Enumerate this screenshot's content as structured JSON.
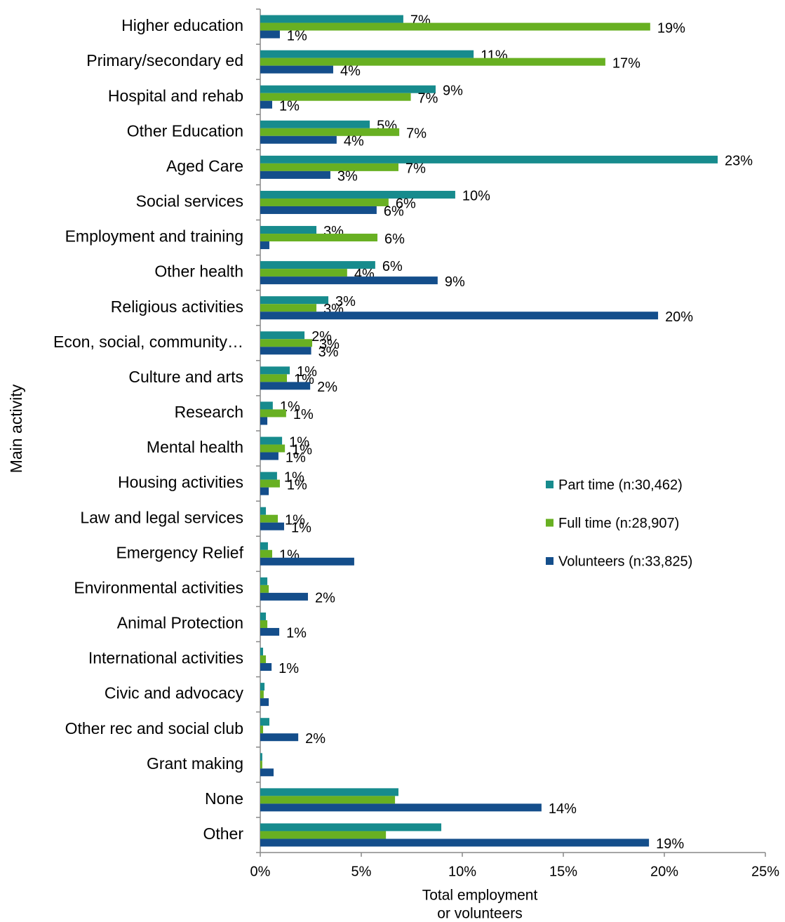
{
  "chart_data": {
    "type": "hbar",
    "ylabel": "Main activity",
    "xlabel": [
      "Total employment",
      "or volunteers"
    ],
    "categories": [
      "Higher education",
      "Primary/secondary ed",
      "Hospital and rehab",
      "Other Education",
      "Aged Care",
      "Social services",
      "Employment and training",
      "Other health",
      "Religious activities",
      "Econ, social, community…",
      "Culture and arts",
      "Research",
      "Mental health",
      "Housing activities",
      "Law and legal services",
      "Emergency Relief",
      "Environmental activities",
      "Animal Protection",
      "International activities",
      "Civic and advocacy",
      "Other rec and social club",
      "Grant making",
      "None",
      "Other"
    ],
    "series": [
      {
        "name": "Part time (n:30,462)",
        "color": "#178b8d",
        "values": [
          7.08,
          10.56,
          8.68,
          5.42,
          22.64,
          9.65,
          2.78,
          5.69,
          3.37,
          2.19,
          1.46,
          0.62,
          1.08,
          0.83,
          0.28,
          0.38,
          0.35,
          0.28,
          0.14,
          0.21,
          0.45,
          0.1,
          6.84,
          8.96
        ],
        "value_labels": [
          "7%",
          "11%",
          "9%",
          "5%",
          "23%",
          "10%",
          "3%",
          "6%",
          "3%",
          "2%",
          "1%",
          "1%",
          "1%",
          "1%",
          null,
          null,
          null,
          null,
          null,
          null,
          null,
          null,
          null,
          null
        ]
      },
      {
        "name": "Full time (n:28,907)",
        "color": "#68b022",
        "values": [
          19.3,
          17.08,
          7.45,
          6.88,
          6.84,
          6.35,
          5.8,
          4.3,
          2.78,
          2.57,
          1.32,
          1.28,
          1.22,
          0.97,
          0.87,
          0.59,
          0.42,
          0.35,
          0.28,
          0.17,
          0.14,
          0.1,
          6.67,
          6.22
        ],
        "value_labels": [
          "19%",
          "17%",
          "7%",
          "7%",
          "7%",
          "6%",
          "6%",
          "4%",
          "3%",
          "3%",
          "1%",
          "1%",
          "1%",
          "1%",
          "1%",
          "1%",
          null,
          null,
          null,
          null,
          null,
          null,
          null,
          null
        ]
      },
      {
        "name": "Volunteers (n:33,825)",
        "color": "#144e8b",
        "values": [
          0.97,
          3.61,
          0.59,
          3.78,
          3.47,
          5.76,
          0.45,
          8.78,
          19.69,
          2.52,
          2.47,
          0.35,
          0.9,
          0.42,
          1.18,
          4.65,
          2.36,
          0.94,
          0.56,
          0.42,
          1.88,
          0.66,
          13.92,
          19.24
        ],
        "value_labels": [
          "1%",
          "4%",
          "1%",
          "4%",
          "3%",
          "6%",
          null,
          "9%",
          "20%",
          "3%",
          "2%",
          null,
          "1%",
          null,
          "1%",
          null,
          "2%",
          "1%",
          "1%",
          null,
          "2%",
          null,
          "14%",
          "19%"
        ]
      }
    ],
    "xlim": [
      0,
      25
    ],
    "xticks": [
      {
        "value": 0,
        "label": "0%"
      },
      {
        "value": 5,
        "label": "5%"
      },
      {
        "value": 10,
        "label": "10%"
      },
      {
        "value": 15,
        "label": "15%"
      },
      {
        "value": 20,
        "label": "20%"
      },
      {
        "value": 25,
        "label": "25%"
      }
    ],
    "grid": false,
    "legend": "right"
  }
}
